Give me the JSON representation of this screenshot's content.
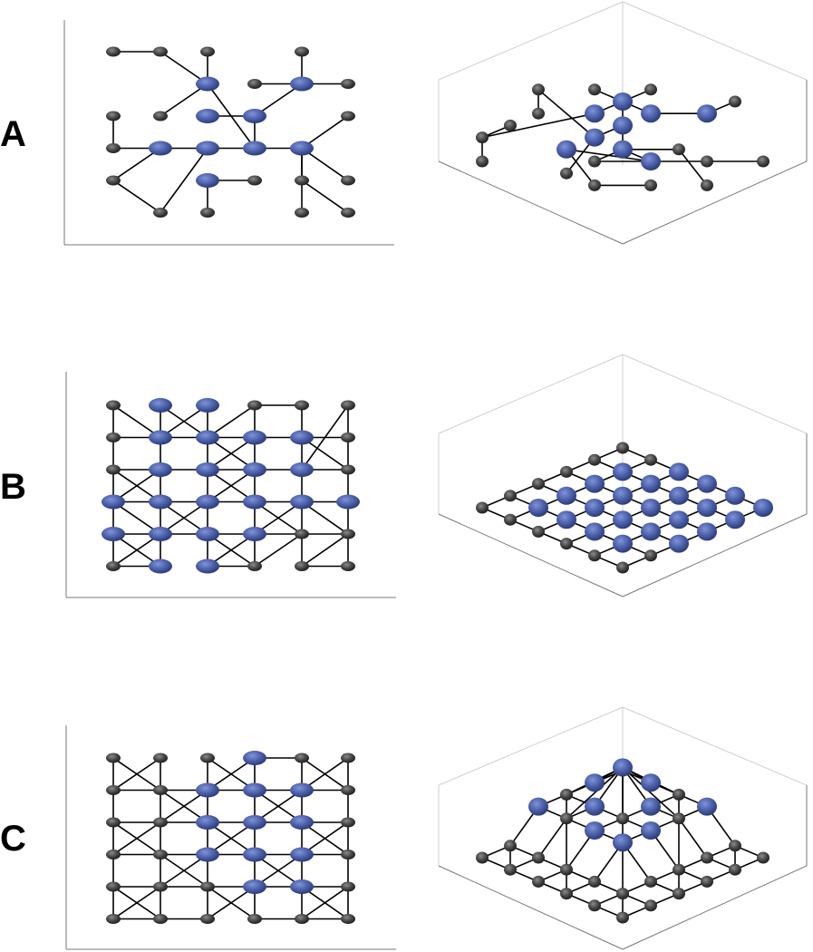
{
  "labels": [
    "A",
    "B",
    "C"
  ],
  "colors": {
    "highlight": "#4a5ea8",
    "node": "#444444",
    "edge": "#000000",
    "axis": "#777777",
    "box": "#cfcfcf"
  }
}
